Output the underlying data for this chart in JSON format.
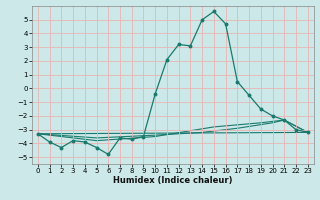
{
  "xlabel": "Humidex (Indice chaleur)",
  "background_color": "#cce8e8",
  "grid_color": "#e8b4b4",
  "line_color": "#1a7a6e",
  "xlim": [
    -0.5,
    23.5
  ],
  "ylim": [
    -5.5,
    6.0
  ],
  "xticks": [
    0,
    1,
    2,
    3,
    4,
    5,
    6,
    7,
    8,
    9,
    10,
    11,
    12,
    13,
    14,
    15,
    16,
    17,
    18,
    19,
    20,
    21,
    22,
    23
  ],
  "yticks": [
    -5,
    -4,
    -3,
    -2,
    -1,
    0,
    1,
    2,
    3,
    4,
    5
  ],
  "series1": [
    [
      0,
      -3.3
    ],
    [
      1,
      -3.9
    ],
    [
      2,
      -4.3
    ],
    [
      3,
      -3.8
    ],
    [
      4,
      -3.9
    ],
    [
      5,
      -4.3
    ],
    [
      6,
      -4.8
    ],
    [
      7,
      -3.6
    ],
    [
      8,
      -3.7
    ],
    [
      9,
      -3.5
    ],
    [
      10,
      -0.4
    ],
    [
      11,
      2.1
    ],
    [
      12,
      3.2
    ],
    [
      13,
      3.1
    ],
    [
      14,
      5.0
    ],
    [
      15,
      5.6
    ],
    [
      16,
      4.7
    ],
    [
      17,
      0.5
    ],
    [
      18,
      -0.5
    ],
    [
      19,
      -1.5
    ],
    [
      20,
      -2.0
    ],
    [
      21,
      -2.3
    ],
    [
      22,
      -3.0
    ],
    [
      23,
      -3.2
    ]
  ],
  "series2": [
    [
      0,
      -3.3
    ],
    [
      5,
      -3.8
    ],
    [
      10,
      -3.5
    ],
    [
      15,
      -2.8
    ],
    [
      19,
      -2.5
    ],
    [
      21,
      -2.3
    ],
    [
      23,
      -3.2
    ]
  ],
  "series3": [
    [
      0,
      -3.3
    ],
    [
      5,
      -3.6
    ],
    [
      10,
      -3.4
    ],
    [
      14,
      -3.2
    ],
    [
      17,
      -2.9
    ],
    [
      20,
      -2.5
    ],
    [
      21,
      -2.3
    ],
    [
      23,
      -3.2
    ]
  ],
  "series4": [
    [
      0,
      -3.3
    ],
    [
      23,
      -3.2
    ]
  ]
}
